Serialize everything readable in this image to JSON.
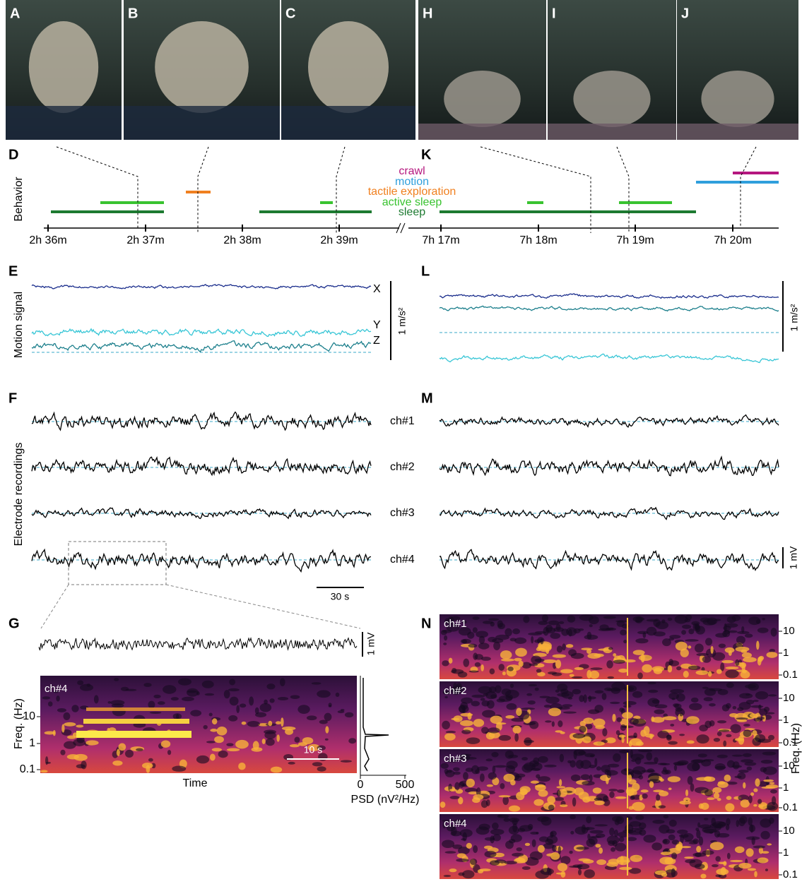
{
  "figure": {
    "photos": [
      "A",
      "B",
      "C",
      "H",
      "I",
      "J"
    ],
    "behavior": {
      "left_label": "D",
      "right_label": "K",
      "axis_label": "Behavior",
      "legend": [
        {
          "name": "crawl",
          "color": "#b5177f"
        },
        {
          "name": "motion",
          "color": "#2f9fdc"
        },
        {
          "name": "tactile exploration",
          "color": "#f08020"
        },
        {
          "name": "active sleep",
          "color": "#39c330"
        },
        {
          "name": "sleep",
          "color": "#1d7a31"
        }
      ],
      "left_ticks": [
        "2h 36m",
        "2h 37m",
        "2h 38m",
        "2h 39m"
      ],
      "right_ticks": [
        "7h 17m",
        "7h 18m",
        "7h 19m",
        "7h 20m"
      ]
    },
    "motion": {
      "left_label": "E",
      "right_label": "L",
      "axis_label": "Motion signal",
      "channels": [
        "X",
        "Y",
        "Z"
      ],
      "scale": "1 m/s²"
    },
    "electrode": {
      "left_label": "F",
      "right_label": "M",
      "axis_label": "Electrode recordings",
      "channels": [
        "ch#1",
        "ch#2",
        "ch#3",
        "ch#4"
      ],
      "time_scale": "30 s",
      "volt_scale": "1 mV"
    },
    "zoom": {
      "label": "G",
      "volt_scale": "1 mV",
      "channel": "ch#4",
      "y_label": "Freq. (Hz)",
      "y_ticks": [
        "10",
        "1",
        "0.1"
      ],
      "time_scale": "10 s",
      "x_label": "Time",
      "psd_ticks": [
        "0",
        "500"
      ],
      "psd_label": "PSD (nV²/Hz)"
    },
    "spectrograms": {
      "label": "N",
      "channels": [
        "ch#1",
        "ch#2",
        "ch#3",
        "ch#4"
      ],
      "y_ticks": [
        "10",
        "1",
        "0.1"
      ],
      "y_label": "Freq. (Hz)"
    }
  }
}
